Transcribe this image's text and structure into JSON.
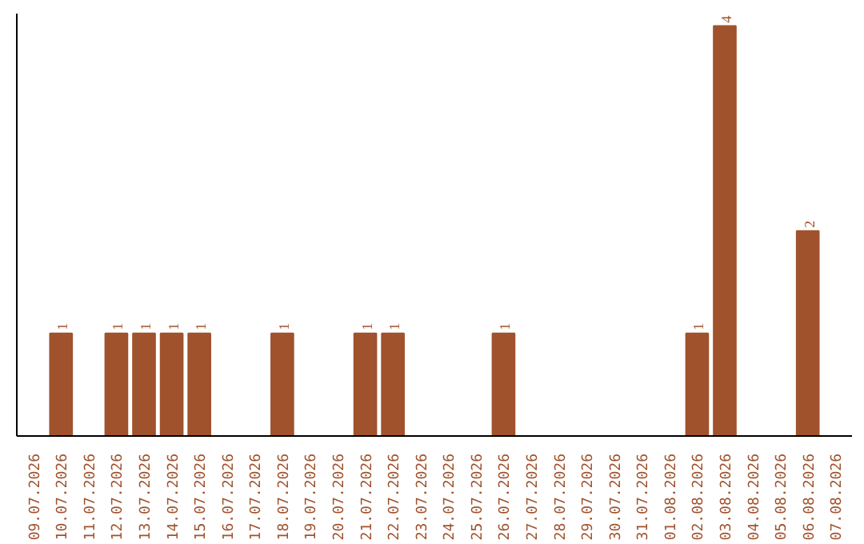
{
  "chart_data": {
    "type": "bar",
    "categories": [
      "09.07.2026",
      "10.07.2026",
      "11.07.2026",
      "12.07.2026",
      "13.07.2026",
      "14.07.2026",
      "15.07.2026",
      "16.07.2026",
      "17.07.2026",
      "18.07.2026",
      "19.07.2026",
      "20.07.2026",
      "21.07.2026",
      "22.07.2026",
      "23.07.2026",
      "24.07.2026",
      "25.07.2026",
      "26.07.2026",
      "27.07.2026",
      "28.07.2026",
      "29.07.2026",
      "30.07.2026",
      "31.07.2026",
      "01.08.2026",
      "02.08.2026",
      "03.08.2026",
      "04.08.2026",
      "05.08.2026",
      "06.08.2026",
      "07.08.2026"
    ],
    "values": [
      0,
      1,
      0,
      1,
      1,
      1,
      1,
      0,
      0,
      1,
      0,
      0,
      1,
      1,
      0,
      0,
      0,
      1,
      0,
      0,
      0,
      0,
      0,
      0,
      1,
      4,
      0,
      0,
      2,
      0
    ],
    "value_labels": [
      null,
      "1",
      null,
      "1",
      "1",
      "1",
      "1",
      null,
      null,
      "1",
      null,
      null,
      "1",
      "1",
      null,
      null,
      null,
      "1",
      null,
      null,
      null,
      null,
      null,
      null,
      "1",
      "4",
      null,
      null,
      "2",
      null
    ],
    "color": "#a0522d"
  }
}
